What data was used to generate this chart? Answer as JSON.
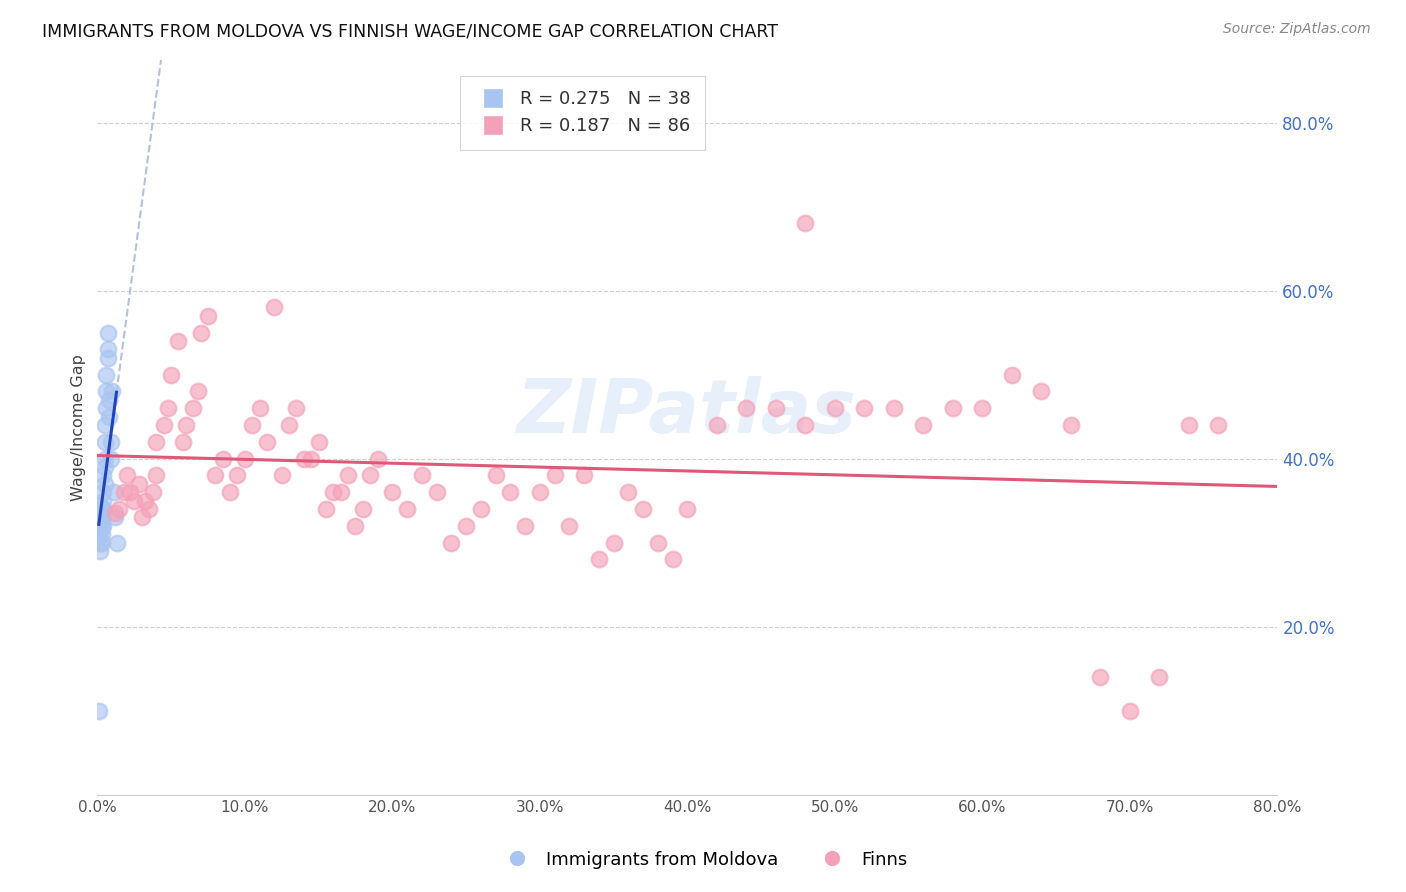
{
  "title": "IMMIGRANTS FROM MOLDOVA VS FINNISH WAGE/INCOME GAP CORRELATION CHART",
  "source": "Source: ZipAtlas.com",
  "ylabel": "Wage/Income Gap",
  "r_moldova": 0.275,
  "n_moldova": 38,
  "r_finns": 0.187,
  "n_finns": 86,
  "xmin": 0.0,
  "xmax": 0.8,
  "ymin": 0.0,
  "ymax": 0.875,
  "yticks": [
    0.2,
    0.4,
    0.6,
    0.8
  ],
  "xticks": [
    0.0,
    0.1,
    0.2,
    0.3,
    0.4,
    0.5,
    0.6,
    0.7,
    0.8
  ],
  "color_moldova": "#a8c4f0",
  "color_finns": "#f4a0b8",
  "trend_moldova_color": "#2244bb",
  "trend_finns_color": "#e05878",
  "background_color": "#ffffff",
  "grid_color": "#d0d0d0",
  "watermark": "ZIPatlas",
  "moldova_x": [
    0.001,
    0.001,
    0.001,
    0.002,
    0.002,
    0.002,
    0.002,
    0.002,
    0.003,
    0.003,
    0.003,
    0.003,
    0.003,
    0.004,
    0.004,
    0.004,
    0.004,
    0.004,
    0.005,
    0.005,
    0.005,
    0.005,
    0.005,
    0.006,
    0.006,
    0.006,
    0.007,
    0.007,
    0.007,
    0.008,
    0.008,
    0.009,
    0.009,
    0.01,
    0.011,
    0.012,
    0.013,
    0.001
  ],
  "moldova_y": [
    0.335,
    0.32,
    0.31,
    0.345,
    0.325,
    0.315,
    0.3,
    0.29,
    0.34,
    0.33,
    0.32,
    0.31,
    0.3,
    0.38,
    0.36,
    0.35,
    0.34,
    0.32,
    0.44,
    0.42,
    0.4,
    0.39,
    0.37,
    0.5,
    0.48,
    0.46,
    0.55,
    0.53,
    0.52,
    0.47,
    0.45,
    0.42,
    0.4,
    0.48,
    0.36,
    0.33,
    0.3,
    0.1
  ],
  "finns_x": [
    0.012,
    0.015,
    0.018,
    0.02,
    0.022,
    0.025,
    0.028,
    0.03,
    0.032,
    0.035,
    0.038,
    0.04,
    0.04,
    0.045,
    0.048,
    0.05,
    0.055,
    0.058,
    0.06,
    0.065,
    0.068,
    0.07,
    0.075,
    0.08,
    0.085,
    0.09,
    0.095,
    0.1,
    0.105,
    0.11,
    0.115,
    0.12,
    0.125,
    0.13,
    0.135,
    0.14,
    0.145,
    0.15,
    0.155,
    0.16,
    0.165,
    0.17,
    0.175,
    0.18,
    0.185,
    0.19,
    0.2,
    0.21,
    0.22,
    0.23,
    0.24,
    0.25,
    0.26,
    0.27,
    0.28,
    0.29,
    0.3,
    0.31,
    0.32,
    0.33,
    0.34,
    0.35,
    0.36,
    0.37,
    0.38,
    0.39,
    0.4,
    0.42,
    0.44,
    0.46,
    0.48,
    0.5,
    0.52,
    0.54,
    0.56,
    0.58,
    0.6,
    0.62,
    0.64,
    0.66,
    0.68,
    0.7,
    0.72,
    0.74,
    0.76,
    0.48
  ],
  "finns_y": [
    0.335,
    0.34,
    0.36,
    0.38,
    0.36,
    0.35,
    0.37,
    0.33,
    0.35,
    0.34,
    0.36,
    0.38,
    0.42,
    0.44,
    0.46,
    0.5,
    0.54,
    0.42,
    0.44,
    0.46,
    0.48,
    0.55,
    0.57,
    0.38,
    0.4,
    0.36,
    0.38,
    0.4,
    0.44,
    0.46,
    0.42,
    0.58,
    0.38,
    0.44,
    0.46,
    0.4,
    0.4,
    0.42,
    0.34,
    0.36,
    0.36,
    0.38,
    0.32,
    0.34,
    0.38,
    0.4,
    0.36,
    0.34,
    0.38,
    0.36,
    0.3,
    0.32,
    0.34,
    0.38,
    0.36,
    0.32,
    0.36,
    0.38,
    0.32,
    0.38,
    0.28,
    0.3,
    0.36,
    0.34,
    0.3,
    0.28,
    0.34,
    0.44,
    0.46,
    0.46,
    0.44,
    0.46,
    0.46,
    0.46,
    0.44,
    0.46,
    0.46,
    0.5,
    0.48,
    0.44,
    0.14,
    0.1,
    0.14,
    0.44,
    0.44,
    0.68
  ]
}
